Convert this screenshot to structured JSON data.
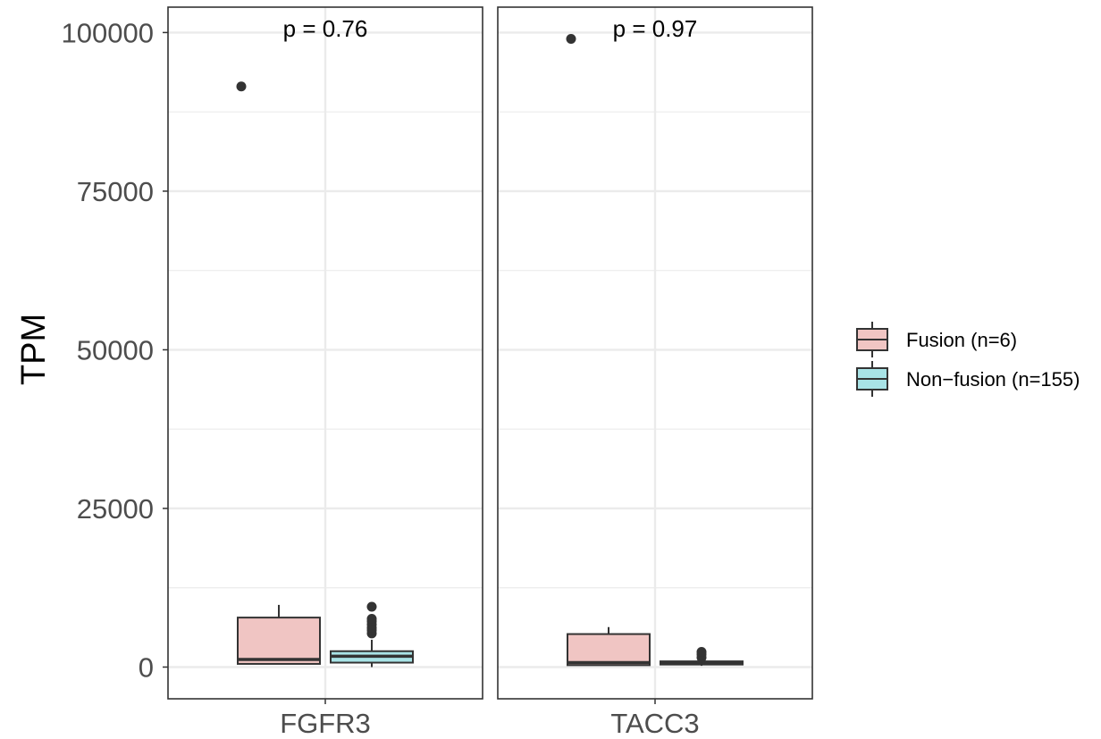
{
  "chart_data": {
    "type": "box",
    "ylabel": "TPM",
    "ylim": [
      -5000,
      104000
    ],
    "y_ticks": [
      0,
      25000,
      50000,
      75000,
      100000
    ],
    "y_tick_labels": [
      "0",
      "25000",
      "50000",
      "75000",
      "100000"
    ],
    "grid": true,
    "legend_position": "right",
    "legend": [
      {
        "label": "Fusion (n=6)",
        "color": "#f0c5c3"
      },
      {
        "label": "Non−fusion (n=155)",
        "color": "#a8e3e6"
      }
    ],
    "panels": [
      {
        "category": "FGFR3",
        "p_label": "p = 0.76",
        "boxes": [
          {
            "group": "Fusion (n=6)",
            "min": 500,
            "q1": 500,
            "median": 1200,
            "q3": 7800,
            "max": 9800,
            "outliers": [
              91500
            ]
          },
          {
            "group": "Non−fusion (n=155)",
            "min": 0,
            "q1": 700,
            "median": 1700,
            "q3": 2500,
            "max": 4300,
            "outliers": [
              5300,
              5800,
              6200,
              6700,
              7200,
              7600,
              9500
            ]
          }
        ]
      },
      {
        "category": "TACC3",
        "p_label": "p = 0.97",
        "boxes": [
          {
            "group": "Fusion (n=6)",
            "min": 300,
            "q1": 300,
            "median": 700,
            "q3": 5200,
            "max": 6300,
            "outliers": [
              99000
            ]
          },
          {
            "group": "Non−fusion (n=155)",
            "min": 200,
            "q1": 400,
            "median": 700,
            "q3": 900,
            "max": 1200,
            "outliers": [
              1500,
              2000,
              2400
            ]
          }
        ]
      }
    ]
  }
}
